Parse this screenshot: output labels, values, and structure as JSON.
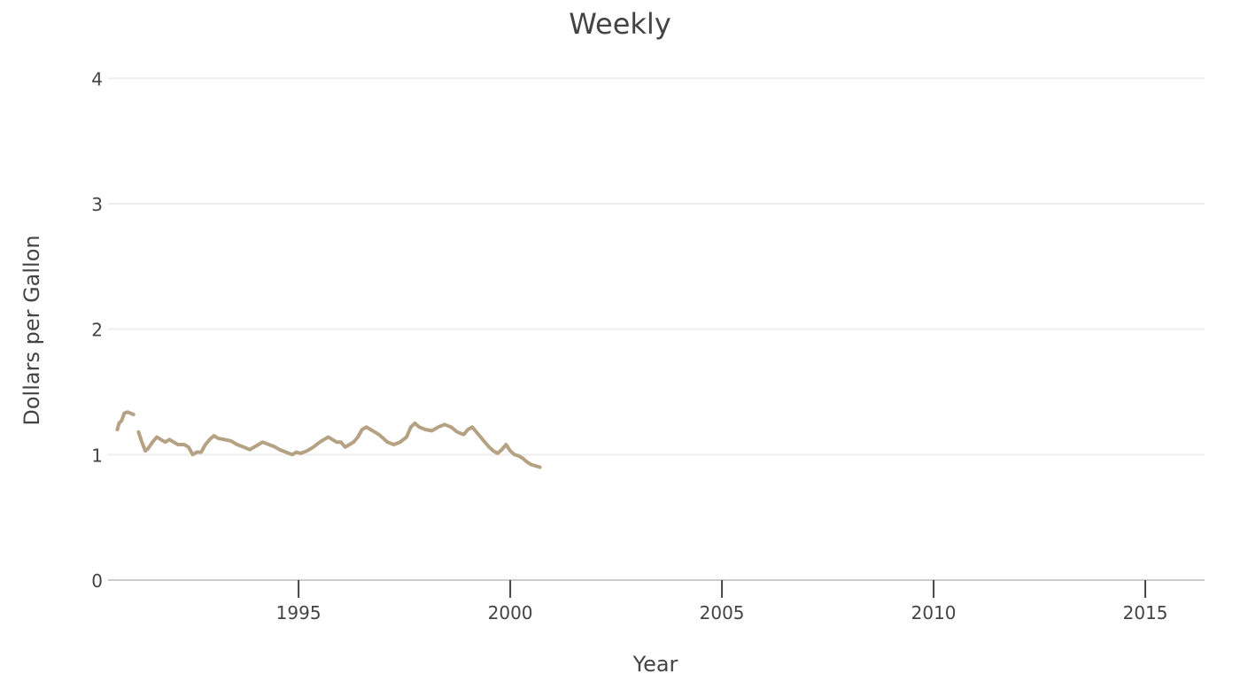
{
  "chart_data": {
    "type": "line",
    "title": "Weekly",
    "xlabel": "Year",
    "ylabel": "Dollars per Gallon",
    "xlim": [
      1990.5,
      2016.4
    ],
    "ylim": [
      0,
      4.2
    ],
    "x_ticks": [
      1995,
      2000,
      2005,
      2010,
      2015
    ],
    "x_tick_labels": [
      "1995",
      "2000",
      "2005",
      "2010",
      "2015"
    ],
    "y_ticks": [
      0,
      1,
      2,
      3,
      4
    ],
    "y_tick_labels": [
      "0",
      "1",
      "2",
      "3",
      "4"
    ],
    "grid": true,
    "colors": {
      "line": "#b5a183"
    },
    "series": [
      {
        "values": [
          [
            1990.72,
            1.2
          ],
          [
            1990.76,
            1.25
          ],
          [
            1990.82,
            1.27
          ],
          [
            1990.88,
            1.33
          ],
          [
            1990.96,
            1.34
          ],
          [
            1991.1,
            1.32
          ],
          null,
          [
            1991.22,
            1.18
          ],
          [
            1991.3,
            1.1
          ],
          [
            1991.38,
            1.03
          ],
          [
            1991.45,
            1.05
          ],
          [
            1991.55,
            1.1
          ],
          [
            1991.65,
            1.14
          ],
          [
            1991.75,
            1.12
          ],
          [
            1991.85,
            1.1
          ],
          [
            1991.95,
            1.12
          ],
          [
            1992.05,
            1.1
          ],
          [
            1992.15,
            1.08
          ],
          [
            1992.3,
            1.08
          ],
          [
            1992.4,
            1.06
          ],
          [
            1992.5,
            1.0
          ],
          [
            1992.6,
            1.02
          ],
          [
            1992.7,
            1.02
          ],
          [
            1992.8,
            1.08
          ],
          [
            1992.9,
            1.12
          ],
          [
            1993.0,
            1.15
          ],
          [
            1993.1,
            1.13
          ],
          [
            1993.25,
            1.12
          ],
          [
            1993.4,
            1.11
          ],
          [
            1993.55,
            1.08
          ],
          [
            1993.7,
            1.06
          ],
          [
            1993.85,
            1.04
          ],
          [
            1993.95,
            1.06
          ],
          [
            1994.05,
            1.08
          ],
          [
            1994.15,
            1.1
          ],
          [
            1994.3,
            1.08
          ],
          [
            1994.45,
            1.06
          ],
          [
            1994.55,
            1.04
          ],
          [
            1994.7,
            1.02
          ],
          [
            1994.85,
            1.0
          ],
          [
            1994.95,
            1.02
          ],
          [
            1995.05,
            1.01
          ],
          [
            1995.2,
            1.03
          ],
          [
            1995.35,
            1.06
          ],
          [
            1995.5,
            1.1
          ],
          [
            1995.6,
            1.12
          ],
          [
            1995.7,
            1.14
          ],
          [
            1995.8,
            1.12
          ],
          [
            1995.9,
            1.1
          ],
          [
            1996.0,
            1.1
          ],
          [
            1996.1,
            1.06
          ],
          [
            1996.2,
            1.08
          ],
          [
            1996.3,
            1.1
          ],
          [
            1996.4,
            1.14
          ],
          [
            1996.5,
            1.2
          ],
          [
            1996.6,
            1.22
          ],
          [
            1996.7,
            1.2
          ],
          [
            1996.8,
            1.18
          ],
          [
            1996.9,
            1.16
          ],
          [
            1997.0,
            1.13
          ],
          [
            1997.1,
            1.1
          ],
          [
            1997.25,
            1.08
          ],
          [
            1997.4,
            1.1
          ],
          [
            1997.55,
            1.14
          ],
          [
            1997.65,
            1.22
          ],
          [
            1997.75,
            1.25
          ],
          [
            1997.85,
            1.22
          ],
          [
            1998.0,
            1.2
          ],
          [
            1998.15,
            1.19
          ],
          [
            1998.3,
            1.22
          ],
          [
            1998.45,
            1.24
          ],
          [
            1998.6,
            1.22
          ],
          [
            1998.75,
            1.18
          ],
          [
            1998.9,
            1.16
          ],
          [
            1999.0,
            1.2
          ],
          [
            1999.1,
            1.22
          ],
          [
            1999.2,
            1.18
          ],
          [
            1999.3,
            1.14
          ],
          [
            1999.4,
            1.1
          ],
          [
            1999.5,
            1.06
          ],
          [
            1999.6,
            1.03
          ],
          [
            1999.7,
            1.01
          ],
          [
            1999.8,
            1.04
          ],
          [
            1999.9,
            1.08
          ],
          [
            2000.0,
            1.03
          ],
          [
            2000.1,
            1.0
          ],
          [
            2000.2,
            0.99
          ],
          [
            2000.3,
            0.97
          ],
          [
            2000.4,
            0.94
          ],
          [
            2000.5,
            0.92
          ],
          [
            2000.6,
            0.91
          ],
          [
            2000.7,
            0.9
          ]
        ]
      }
    ]
  }
}
